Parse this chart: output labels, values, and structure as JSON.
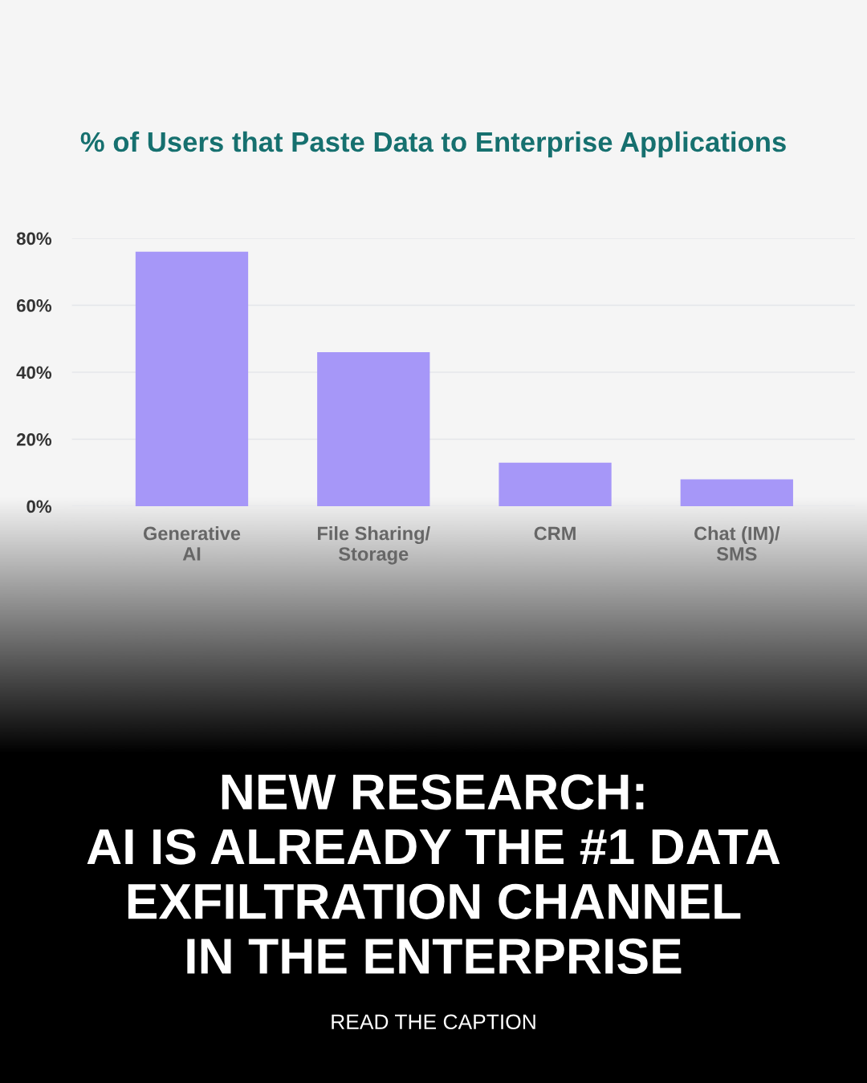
{
  "chart_data": {
    "type": "bar",
    "title": "% of Users that Paste Data to Enterprise Applications",
    "categories": [
      "Generative\nAI",
      "File Sharing/\nStorage",
      "CRM",
      "Chat (IM)/\nSMS"
    ],
    "values": [
      76,
      46,
      13,
      8
    ],
    "color": "#a697f8",
    "ylim": [
      0,
      80
    ],
    "yticks": [
      {
        "value": 0,
        "label": "0%"
      },
      {
        "value": 20,
        "label": "20%"
      },
      {
        "value": 40,
        "label": "40%"
      },
      {
        "value": 60,
        "label": "60%"
      },
      {
        "value": 80,
        "label": "80%"
      }
    ],
    "grid": "y",
    "annotations": [
      "NEW RESEARCH:\nAI IS ALREADY THE #1 DATA\nEXFILTRATION CHANNEL\nIN THE ENTERPRISE",
      "READ THE CAPTION"
    ]
  }
}
